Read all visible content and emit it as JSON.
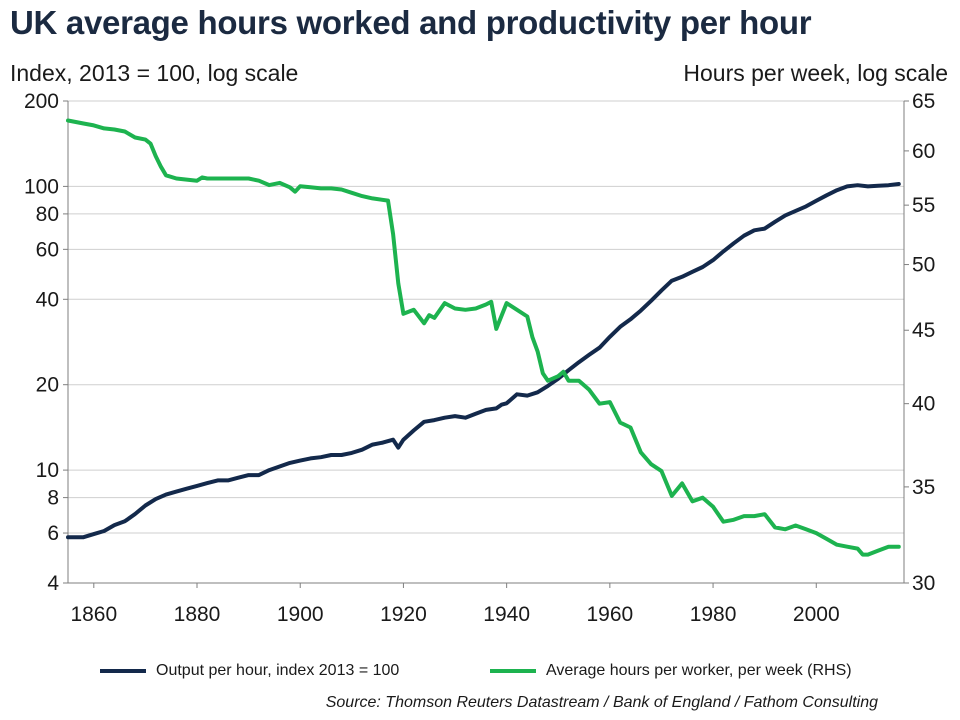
{
  "colors": {
    "output": "#13294b",
    "hours": "#1db34f",
    "grid": "#cfcfcf",
    "axis": "#7f7f7f",
    "text": "#1a1a1a"
  },
  "chart_data": {
    "type": "line",
    "title": "UK average hours worked and productivity per hour",
    "left_axis_label": "Index, 2013 = 100, log scale",
    "right_axis_label": "Hours per week, log scale",
    "source": "Source: Thomson Reuters Datastream / Bank of England / Fathom Consulting",
    "x_range": [
      1855,
      2017
    ],
    "x_ticks": [
      1860,
      1880,
      1900,
      1920,
      1940,
      1960,
      1980,
      2000
    ],
    "left_axis": {
      "scale": "log",
      "range": [
        4,
        200
      ],
      "ticks": [
        4,
        6,
        8,
        10,
        20,
        40,
        60,
        80,
        100,
        200
      ]
    },
    "right_axis": {
      "scale": "log",
      "range": [
        30,
        65
      ],
      "ticks": [
        30,
        35,
        40,
        45,
        50,
        55,
        60,
        65
      ]
    },
    "grid": "horizontal",
    "legend_position": "bottom",
    "series": [
      {
        "name": "Output per hour, index 2013 = 100",
        "axis": "left",
        "points": [
          [
            1855,
            5.8
          ],
          [
            1858,
            5.8
          ],
          [
            1860,
            5.95
          ],
          [
            1862,
            6.1
          ],
          [
            1864,
            6.4
          ],
          [
            1866,
            6.6
          ],
          [
            1868,
            7.0
          ],
          [
            1870,
            7.5
          ],
          [
            1872,
            7.9
          ],
          [
            1874,
            8.2
          ],
          [
            1876,
            8.4
          ],
          [
            1878,
            8.6
          ],
          [
            1880,
            8.8
          ],
          [
            1882,
            9.0
          ],
          [
            1884,
            9.2
          ],
          [
            1886,
            9.2
          ],
          [
            1888,
            9.4
          ],
          [
            1890,
            9.6
          ],
          [
            1892,
            9.6
          ],
          [
            1894,
            10.0
          ],
          [
            1896,
            10.3
          ],
          [
            1898,
            10.6
          ],
          [
            1900,
            10.8
          ],
          [
            1902,
            11.0
          ],
          [
            1904,
            11.1
          ],
          [
            1906,
            11.3
          ],
          [
            1908,
            11.3
          ],
          [
            1910,
            11.5
          ],
          [
            1912,
            11.8
          ],
          [
            1914,
            12.3
          ],
          [
            1916,
            12.5
          ],
          [
            1918,
            12.8
          ],
          [
            1919,
            12.0
          ],
          [
            1920,
            12.8
          ],
          [
            1922,
            13.8
          ],
          [
            1924,
            14.8
          ],
          [
            1926,
            15.0
          ],
          [
            1928,
            15.3
          ],
          [
            1930,
            15.5
          ],
          [
            1932,
            15.3
          ],
          [
            1934,
            15.8
          ],
          [
            1936,
            16.3
          ],
          [
            1938,
            16.5
          ],
          [
            1939,
            17.0
          ],
          [
            1940,
            17.2
          ],
          [
            1942,
            18.5
          ],
          [
            1944,
            18.3
          ],
          [
            1946,
            18.8
          ],
          [
            1948,
            19.8
          ],
          [
            1950,
            21.0
          ],
          [
            1952,
            22.5
          ],
          [
            1954,
            24.0
          ],
          [
            1956,
            25.5
          ],
          [
            1958,
            27.0
          ],
          [
            1960,
            29.5
          ],
          [
            1962,
            32.0
          ],
          [
            1964,
            34.0
          ],
          [
            1966,
            36.5
          ],
          [
            1968,
            39.5
          ],
          [
            1970,
            43.0
          ],
          [
            1972,
            46.5
          ],
          [
            1974,
            48.0
          ],
          [
            1976,
            50.0
          ],
          [
            1978,
            52.0
          ],
          [
            1980,
            55.0
          ],
          [
            1982,
            59.0
          ],
          [
            1984,
            63.0
          ],
          [
            1986,
            67.0
          ],
          [
            1988,
            70.0
          ],
          [
            1990,
            71.0
          ],
          [
            1992,
            75.0
          ],
          [
            1994,
            79.0
          ],
          [
            1996,
            82.0
          ],
          [
            1998,
            85.0
          ],
          [
            2000,
            89.0
          ],
          [
            2002,
            93.0
          ],
          [
            2004,
            97.0
          ],
          [
            2006,
            100.0
          ],
          [
            2008,
            101.0
          ],
          [
            2010,
            100.0
          ],
          [
            2012,
            100.5
          ],
          [
            2014,
            101.0
          ],
          [
            2016,
            102.0
          ]
        ]
      },
      {
        "name": "Average hours per worker, per week (RHS)",
        "axis": "right",
        "points": [
          [
            1855,
            63.0
          ],
          [
            1858,
            62.7
          ],
          [
            1860,
            62.5
          ],
          [
            1862,
            62.2
          ],
          [
            1864,
            62.1
          ],
          [
            1866,
            61.9
          ],
          [
            1868,
            61.3
          ],
          [
            1870,
            61.1
          ],
          [
            1871,
            60.7
          ],
          [
            1872,
            59.5
          ],
          [
            1873,
            58.5
          ],
          [
            1874,
            57.7
          ],
          [
            1876,
            57.4
          ],
          [
            1878,
            57.3
          ],
          [
            1880,
            57.2
          ],
          [
            1881,
            57.5
          ],
          [
            1882,
            57.4
          ],
          [
            1886,
            57.4
          ],
          [
            1890,
            57.4
          ],
          [
            1892,
            57.2
          ],
          [
            1894,
            56.8
          ],
          [
            1896,
            57.0
          ],
          [
            1898,
            56.6
          ],
          [
            1899,
            56.2
          ],
          [
            1900,
            56.7
          ],
          [
            1902,
            56.6
          ],
          [
            1904,
            56.5
          ],
          [
            1906,
            56.5
          ],
          [
            1908,
            56.4
          ],
          [
            1910,
            56.1
          ],
          [
            1912,
            55.8
          ],
          [
            1914,
            55.6
          ],
          [
            1917,
            55.4
          ],
          [
            1918,
            52.5
          ],
          [
            1919,
            48.5
          ],
          [
            1920,
            46.2
          ],
          [
            1922,
            46.5
          ],
          [
            1924,
            45.5
          ],
          [
            1925,
            46.1
          ],
          [
            1926,
            45.9
          ],
          [
            1928,
            47.0
          ],
          [
            1930,
            46.6
          ],
          [
            1932,
            46.5
          ],
          [
            1934,
            46.6
          ],
          [
            1936,
            46.9
          ],
          [
            1937,
            47.1
          ],
          [
            1938,
            45.1
          ],
          [
            1940,
            47.0
          ],
          [
            1942,
            46.5
          ],
          [
            1944,
            46.0
          ],
          [
            1945,
            44.5
          ],
          [
            1946,
            43.5
          ],
          [
            1947,
            42.0
          ],
          [
            1948,
            41.5
          ],
          [
            1950,
            41.8
          ],
          [
            1951,
            42.1
          ],
          [
            1952,
            41.5
          ],
          [
            1954,
            41.5
          ],
          [
            1956,
            40.9
          ],
          [
            1958,
            40.0
          ],
          [
            1960,
            40.1
          ],
          [
            1962,
            38.8
          ],
          [
            1964,
            38.5
          ],
          [
            1966,
            37.0
          ],
          [
            1968,
            36.3
          ],
          [
            1970,
            35.9
          ],
          [
            1972,
            34.5
          ],
          [
            1974,
            35.2
          ],
          [
            1976,
            34.2
          ],
          [
            1978,
            34.4
          ],
          [
            1980,
            33.9
          ],
          [
            1982,
            33.1
          ],
          [
            1984,
            33.2
          ],
          [
            1986,
            33.4
          ],
          [
            1988,
            33.4
          ],
          [
            1990,
            33.5
          ],
          [
            1992,
            32.8
          ],
          [
            1994,
            32.7
          ],
          [
            1996,
            32.9
          ],
          [
            1998,
            32.7
          ],
          [
            2000,
            32.5
          ],
          [
            2002,
            32.2
          ],
          [
            2004,
            31.9
          ],
          [
            2006,
            31.8
          ],
          [
            2008,
            31.7
          ],
          [
            2009,
            31.4
          ],
          [
            2010,
            31.4
          ],
          [
            2012,
            31.6
          ],
          [
            2014,
            31.8
          ],
          [
            2016,
            31.8
          ]
        ]
      }
    ]
  }
}
